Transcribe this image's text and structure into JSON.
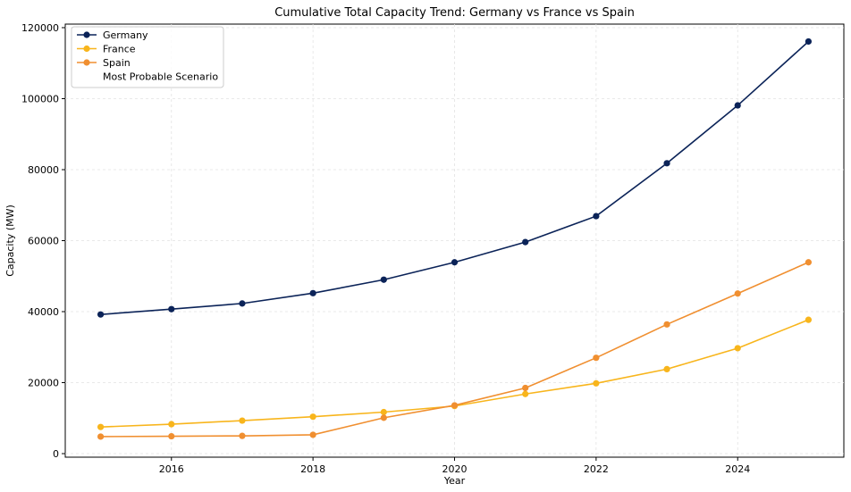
{
  "chart_data": {
    "type": "line",
    "title": "Cumulative Total Capacity Trend: Germany vs France vs Spain",
    "xlabel": "Year",
    "ylabel": "Capacity (MW)",
    "xlim": [
      2014.5,
      2025.5
    ],
    "ylim": [
      -1000,
      121000
    ],
    "xticks": [
      2016,
      2018,
      2020,
      2022,
      2024
    ],
    "yticks": [
      0,
      20000,
      40000,
      60000,
      80000,
      100000,
      120000
    ],
    "x": [
      2015,
      2016,
      2017,
      2018,
      2019,
      2020,
      2021,
      2022,
      2023,
      2024,
      2025
    ],
    "grid": true,
    "legend_position": "top-left",
    "series": [
      {
        "name": "Germany",
        "color": "#0b2358",
        "values": [
          39200,
          40700,
          42300,
          45200,
          49000,
          53900,
          59600,
          66900,
          81800,
          98100,
          116100
        ]
      },
      {
        "name": "France",
        "color": "#f8b51c",
        "values": [
          7500,
          8300,
          9300,
          10400,
          11700,
          13400,
          16800,
          19800,
          23800,
          29700,
          37700
        ]
      },
      {
        "name": "Spain",
        "color": "#f08f30",
        "values": [
          4800,
          4900,
          5000,
          5300,
          10100,
          13600,
          18500,
          27000,
          36400,
          45100,
          53900
        ]
      }
    ],
    "legend_extra": "Most Probable Scenario"
  }
}
